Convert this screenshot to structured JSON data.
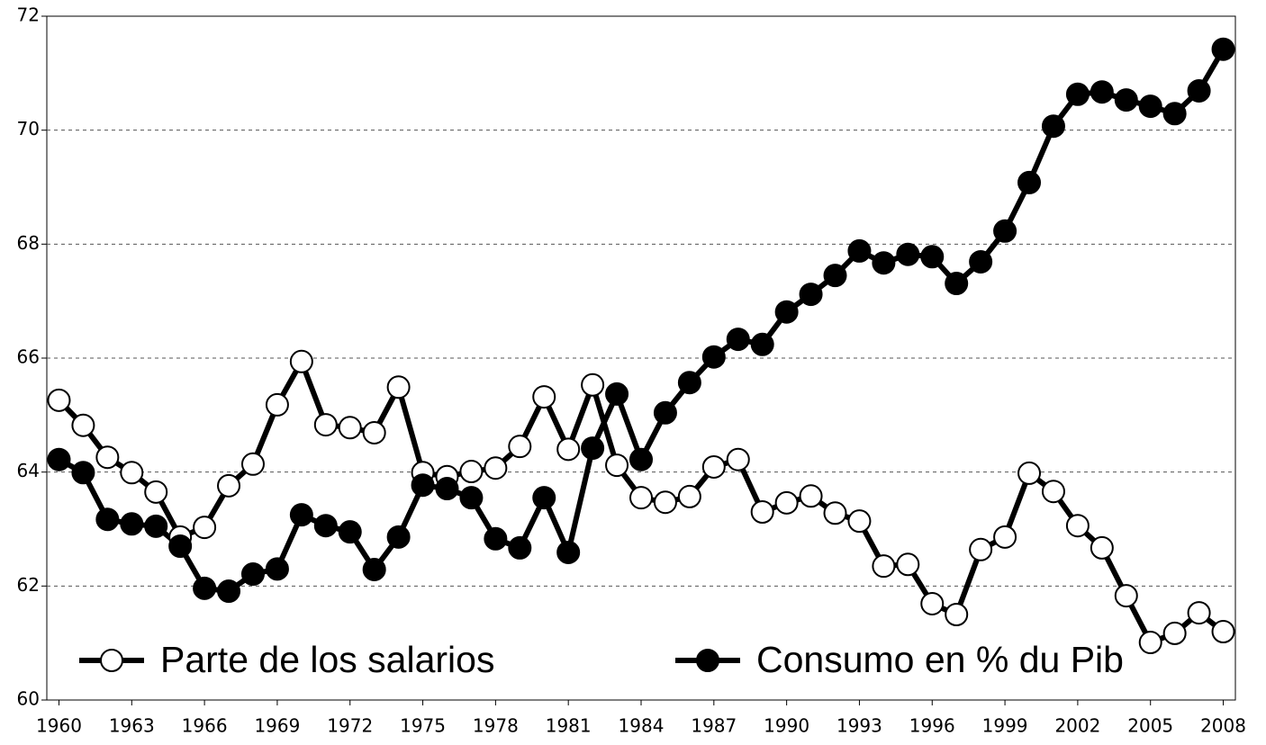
{
  "chart_data": {
    "type": "line",
    "x": [
      1960,
      1961,
      1962,
      1963,
      1964,
      1965,
      1966,
      1967,
      1968,
      1969,
      1970,
      1971,
      1972,
      1973,
      1974,
      1975,
      1976,
      1977,
      1978,
      1979,
      1980,
      1981,
      1982,
      1983,
      1984,
      1985,
      1986,
      1987,
      1988,
      1989,
      1990,
      1991,
      1992,
      1993,
      1994,
      1995,
      1996,
      1997,
      1998,
      1999,
      2000,
      2001,
      2002,
      2003,
      2004,
      2005,
      2006,
      2007,
      2008
    ],
    "series": [
      {
        "name": "Parte de los salarios",
        "color": "#ffffff",
        "values": [
          65.26,
          64.82,
          64.26,
          63.99,
          63.65,
          62.86,
          63.03,
          63.76,
          64.14,
          65.18,
          65.94,
          64.83,
          64.78,
          64.69,
          65.49,
          63.99,
          63.92,
          64.01,
          64.07,
          64.45,
          65.32,
          64.4,
          65.53,
          64.12,
          63.55,
          63.47,
          63.57,
          64.09,
          64.22,
          63.3,
          63.46,
          63.58,
          63.28,
          63.14,
          62.35,
          62.38,
          61.69,
          61.5,
          62.64,
          62.86,
          63.98,
          63.66,
          63.06,
          62.67,
          61.83,
          61.01,
          61.17,
          61.53,
          61.2
        ]
      },
      {
        "name": "Consumo en % du Pib",
        "color": "#000000",
        "values": [
          64.22,
          63.99,
          63.17,
          63.09,
          63.05,
          62.7,
          61.96,
          61.91,
          62.21,
          62.3,
          63.25,
          63.06,
          62.95,
          62.29,
          62.86,
          63.77,
          63.71,
          63.55,
          62.83,
          62.67,
          63.55,
          62.59,
          64.42,
          65.37,
          64.22,
          65.04,
          65.57,
          66.02,
          66.33,
          66.24,
          66.81,
          67.12,
          67.45,
          67.88,
          67.67,
          67.82,
          67.78,
          67.31,
          67.69,
          68.23,
          69.08,
          70.07,
          70.63,
          70.67,
          70.53,
          70.42,
          70.29,
          70.69,
          71.42
        ]
      }
    ],
    "xlim": [
      1959.5,
      2008.5
    ],
    "xticks": [
      1960,
      1963,
      1966,
      1969,
      1972,
      1975,
      1978,
      1981,
      1984,
      1987,
      1990,
      1993,
      1996,
      1999,
      2002,
      2005,
      2008
    ],
    "ylim": [
      60,
      72
    ],
    "yticks": [
      60,
      62,
      64,
      66,
      68,
      70,
      72
    ],
    "grid": true,
    "legend": "bottom"
  }
}
